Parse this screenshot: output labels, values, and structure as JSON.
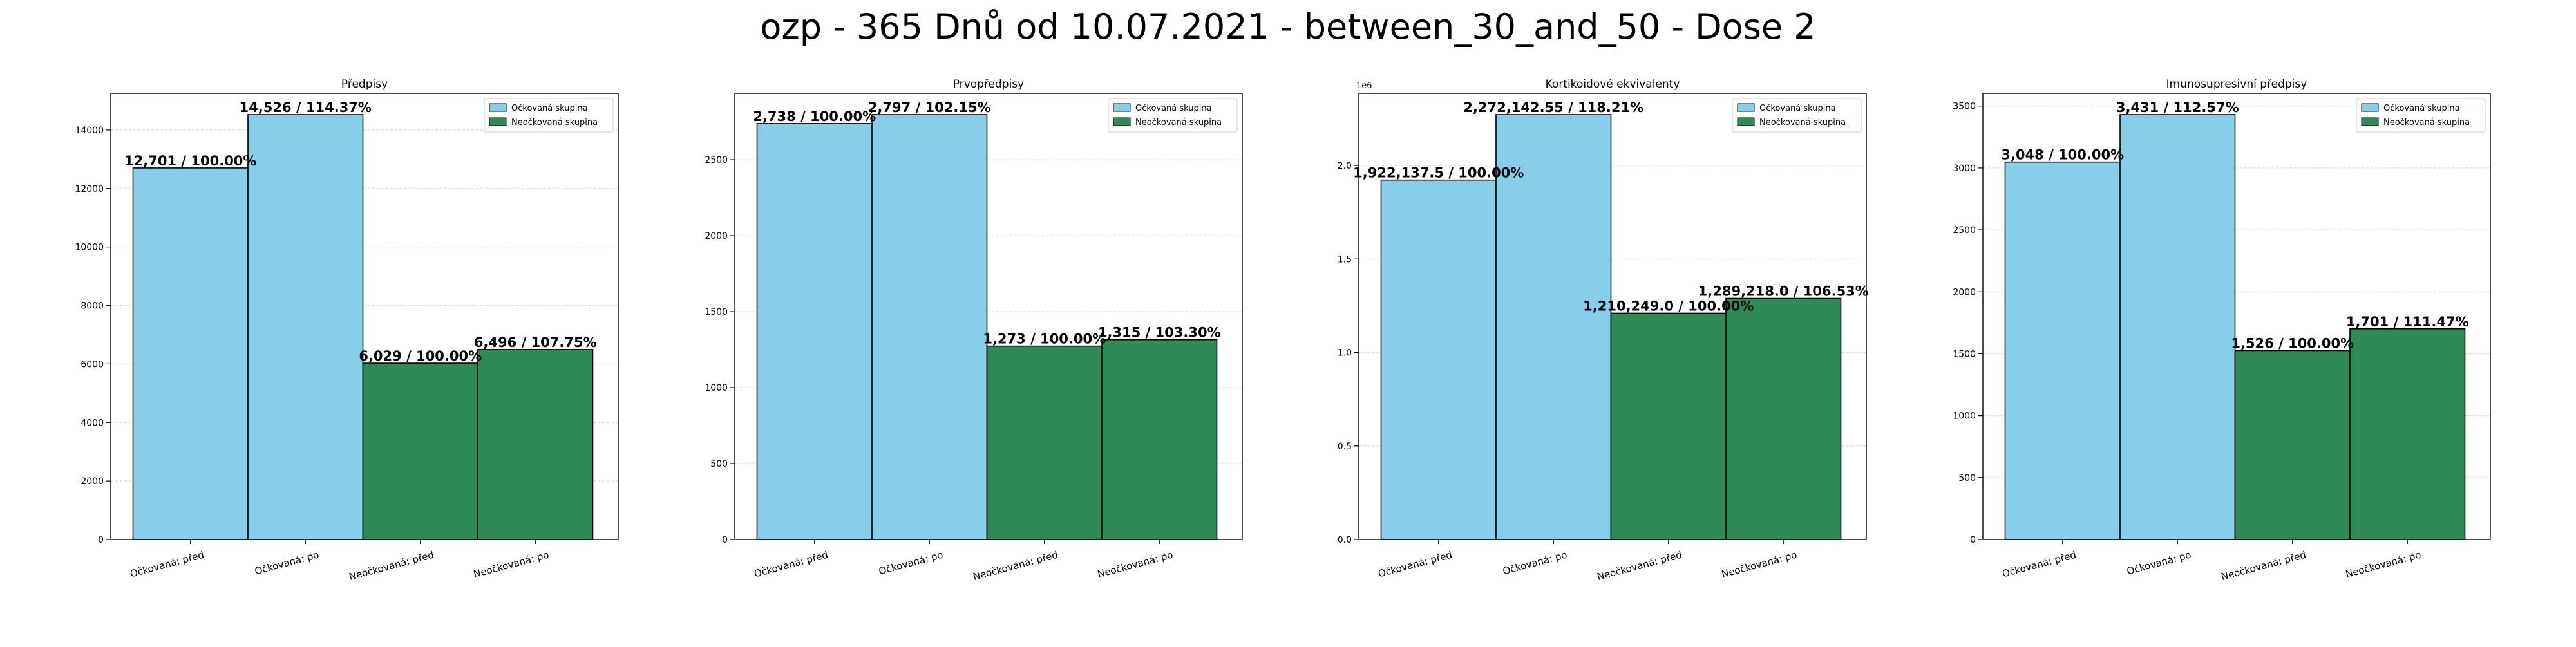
{
  "figure": {
    "suptitle": "ozp - 365 Dnů od 10.07.2021 - between_30_and_50 - Dose 2"
  },
  "colors": {
    "vaccinated": "#87CEEB",
    "unvaccinated": "#2E8B57",
    "edge": "#000000",
    "grid": "#b0b0b0"
  },
  "chart_data": [
    {
      "type": "bar",
      "title": "Předpisy",
      "categories": [
        "Očkovaná: před",
        "Očkovaná: po",
        "Neočkovaná: před",
        "Neočkovaná: po"
      ],
      "values": [
        12701,
        14526,
        6029,
        6496
      ],
      "bar_labels": [
        "12,701 / 100.00%",
        "14,526 / 114.37%",
        "6,029 / 100.00%",
        "6,496 / 107.75%"
      ],
      "groups": [
        "vaccinated",
        "vaccinated",
        "unvaccinated",
        "unvaccinated"
      ],
      "ylim": [
        0,
        15252.3
      ],
      "yticks": [
        0,
        2000,
        4000,
        6000,
        8000,
        10000,
        12000,
        14000
      ],
      "ytick_labels": [
        "0",
        "2000",
        "4000",
        "6000",
        "8000",
        "10000",
        "12000",
        "14000"
      ],
      "offset_text": "",
      "legend": [
        "Očkovaná skupina",
        "Neočkovaná skupina"
      ],
      "legend_position": "top-right",
      "grid": true
    },
    {
      "type": "bar",
      "title": "Prvopředpisy",
      "categories": [
        "Očkovaná: před",
        "Očkovaná: po",
        "Neočkovaná: před",
        "Neočkovaná: po"
      ],
      "values": [
        2738,
        2797,
        1273,
        1315
      ],
      "bar_labels": [
        "2,738 / 100.00%",
        "2,797 / 102.15%",
        "1,273 / 100.00%",
        "1,315 / 103.30%"
      ],
      "groups": [
        "vaccinated",
        "vaccinated",
        "unvaccinated",
        "unvaccinated"
      ],
      "ylim": [
        0,
        2936.85
      ],
      "yticks": [
        0,
        500,
        1000,
        1500,
        2000,
        2500
      ],
      "ytick_labels": [
        "0",
        "500",
        "1000",
        "1500",
        "2000",
        "2500"
      ],
      "offset_text": "",
      "legend": [
        "Očkovaná skupina",
        "Neočkovaná skupina"
      ],
      "legend_position": "top-right",
      "grid": true
    },
    {
      "type": "bar",
      "title": "Kortikoidové ekvivalenty",
      "categories": [
        "Očkovaná: před",
        "Očkovaná: po",
        "Neočkovaná: před",
        "Neočkovaná: po"
      ],
      "values": [
        1922137.5,
        2272142.55,
        1210249.0,
        1289218.0
      ],
      "bar_labels": [
        "1,922,137.5 / 100.00%",
        "2,272,142.55 / 118.21%",
        "1,210,249.0 / 100.00%",
        "1,289,218.0 / 106.53%"
      ],
      "groups": [
        "vaccinated",
        "vaccinated",
        "unvaccinated",
        "unvaccinated"
      ],
      "ylim": [
        0,
        2385749.7
      ],
      "yticks": [
        0,
        500000,
        1000000,
        1500000,
        2000000
      ],
      "ytick_labels": [
        "0.0",
        "0.5",
        "1.0",
        "1.5",
        "2.0"
      ],
      "offset_text": "1e6",
      "legend": [
        "Očkovaná skupina",
        "Neočkovaná skupina"
      ],
      "legend_position": "top-right",
      "grid": true
    },
    {
      "type": "bar",
      "title": "Imunosupresivní předpisy",
      "categories": [
        "Očkovaná: před",
        "Očkovaná: po",
        "Neočkovaná: před",
        "Neočkovaná: po"
      ],
      "values": [
        3048,
        3431,
        1526,
        1701
      ],
      "bar_labels": [
        "3,048 / 100.00%",
        "3,431 / 112.57%",
        "1,526 / 100.00%",
        "1,701 / 111.47%"
      ],
      "groups": [
        "vaccinated",
        "vaccinated",
        "unvaccinated",
        "unvaccinated"
      ],
      "ylim": [
        0,
        3602.55
      ],
      "yticks": [
        0,
        500,
        1000,
        1500,
        2000,
        2500,
        3000,
        3500
      ],
      "ytick_labels": [
        "0",
        "500",
        "1000",
        "1500",
        "2000",
        "2500",
        "3000",
        "3500"
      ],
      "offset_text": "",
      "legend": [
        "Očkovaná skupina",
        "Neočkovaná skupina"
      ],
      "legend_position": "top-right",
      "grid": true
    }
  ]
}
